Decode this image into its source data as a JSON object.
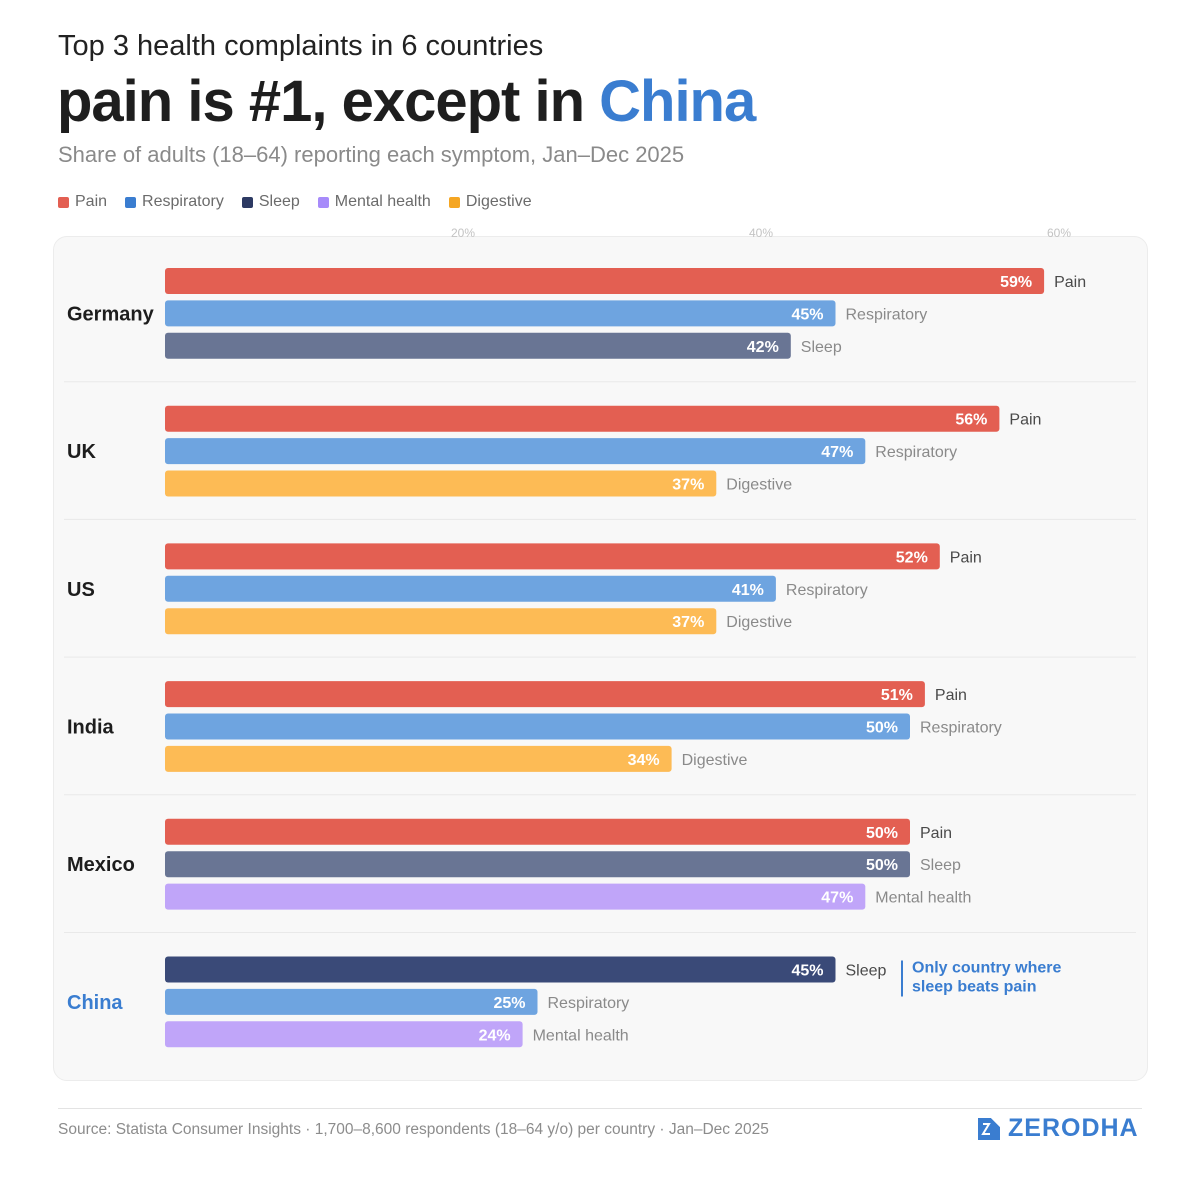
{
  "header": {
    "kicker": "Top 3 health complaints in 6 countries",
    "headline_prefix": "pain is #1, except in ",
    "headline_highlight": "China",
    "subtitle": "Share of adults (18–64) reporting each symptom, Jan–Dec 2025"
  },
  "colors": {
    "Pain": "#e35f52",
    "Respiratory": "#6ea4e0",
    "Sleep": "#697594",
    "SleepHighlight": "#3a4a78",
    "Mental health": "#c0a5f9",
    "Digestive": "#fdbb55",
    "accent": "#3a7dd0"
  },
  "legend": [
    {
      "label": "Pain",
      "color": "#e35f52"
    },
    {
      "label": "Respiratory",
      "color": "#3a7dd0"
    },
    {
      "label": "Sleep",
      "color": "#2d3a63"
    },
    {
      "label": "Mental health",
      "color": "#a78bfa"
    },
    {
      "label": "Digestive",
      "color": "#f5a623"
    }
  ],
  "chart_data": {
    "type": "bar",
    "orientation": "horizontal",
    "title": "pain is #1, except in China",
    "xlim": [
      0,
      60
    ],
    "xticks": [
      20,
      40,
      60
    ],
    "xtick_labels": [
      "20%",
      "40%",
      "60%"
    ],
    "grid": false,
    "groups": [
      {
        "country": "Germany",
        "bars": [
          {
            "category": "Pain",
            "value": 59,
            "label": "59%"
          },
          {
            "category": "Respiratory",
            "value": 45,
            "label": "45%"
          },
          {
            "category": "Sleep",
            "value": 42,
            "label": "42%"
          }
        ]
      },
      {
        "country": "UK",
        "bars": [
          {
            "category": "Pain",
            "value": 56,
            "label": "56%"
          },
          {
            "category": "Respiratory",
            "value": 47,
            "label": "47%"
          },
          {
            "category": "Digestive",
            "value": 37,
            "label": "37%"
          }
        ]
      },
      {
        "country": "US",
        "bars": [
          {
            "category": "Pain",
            "value": 52,
            "label": "52%"
          },
          {
            "category": "Respiratory",
            "value": 41,
            "label": "41%"
          },
          {
            "category": "Digestive",
            "value": 37,
            "label": "37%"
          }
        ]
      },
      {
        "country": "India",
        "bars": [
          {
            "category": "Pain",
            "value": 51,
            "label": "51%"
          },
          {
            "category": "Respiratory",
            "value": 50,
            "label": "50%"
          },
          {
            "category": "Digestive",
            "value": 34,
            "label": "34%"
          }
        ]
      },
      {
        "country": "Mexico",
        "bars": [
          {
            "category": "Pain",
            "value": 50,
            "label": "50%"
          },
          {
            "category": "Sleep",
            "value": 50,
            "label": "50%"
          },
          {
            "category": "Mental health",
            "value": 47,
            "label": "47%"
          }
        ]
      },
      {
        "country": "China",
        "highlight": true,
        "bars": [
          {
            "category": "Sleep",
            "value": 45,
            "label": "45%",
            "highlight": true
          },
          {
            "category": "Respiratory",
            "value": 25,
            "label": "25%"
          },
          {
            "category": "Mental health",
            "value": 24,
            "label": "24%"
          }
        ]
      }
    ],
    "annotation": {
      "country": "China",
      "lines": [
        "Only country where",
        "sleep beats pain"
      ]
    }
  },
  "footer": {
    "source": "Source: Statista Consumer Insights · 1,700–8,600 respondents (18–64 y/o) per country · Jan–Dec 2025",
    "brand": "ZERODHA"
  }
}
